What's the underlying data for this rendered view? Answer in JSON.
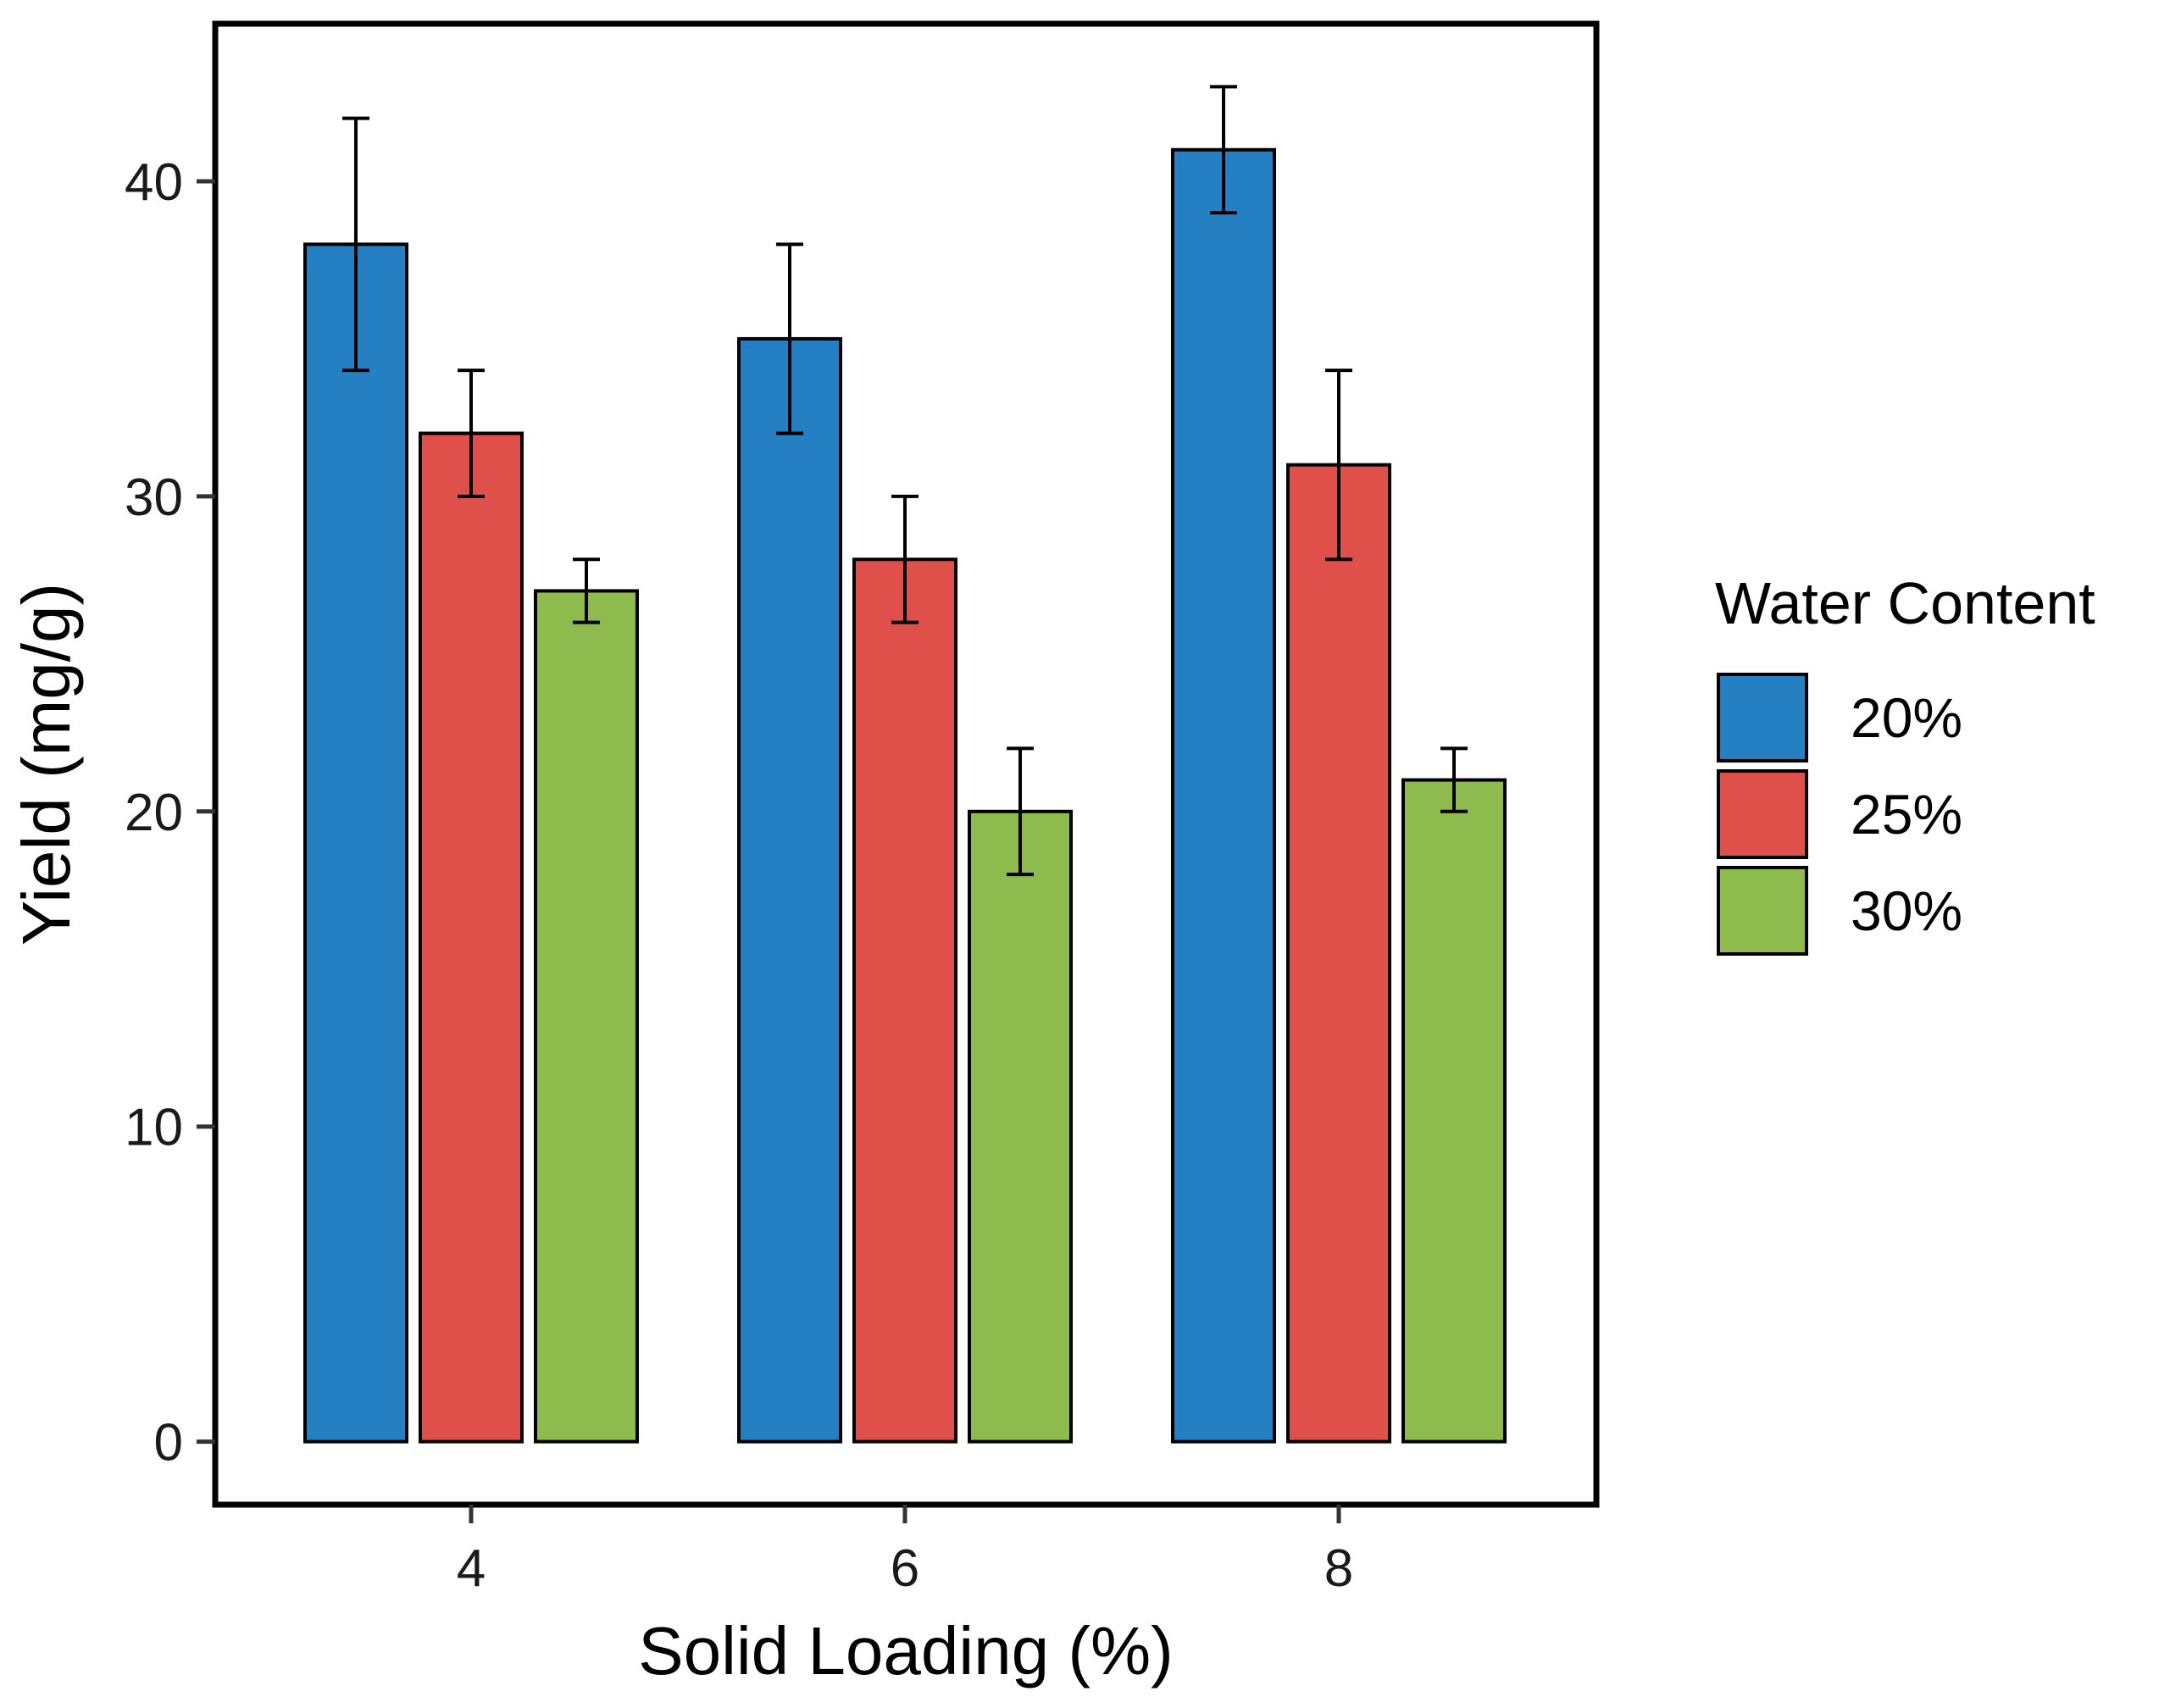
{
  "chart_data": {
    "type": "bar",
    "xlabel": "Solid Loading (%)",
    "ylabel": "Yield (mg/g)",
    "categories": [
      "4",
      "6",
      "8"
    ],
    "ylim": [
      -2,
      45
    ],
    "yticks": [
      0,
      10,
      20,
      30,
      40
    ],
    "grid": false,
    "legend": {
      "title": "Water Content",
      "position": "right"
    },
    "series": [
      {
        "name": "20%",
        "color": "#2580C3",
        "values": [
          38,
          35,
          41
        ],
        "error_low": [
          34,
          32,
          39
        ],
        "error_high": [
          42,
          38,
          43
        ]
      },
      {
        "name": "25%",
        "color": "#E0504B",
        "values": [
          32,
          28,
          31
        ],
        "error_low": [
          30,
          26,
          28
        ],
        "error_high": [
          34,
          30,
          34
        ]
      },
      {
        "name": "30%",
        "color": "#8EBB4E",
        "values": [
          27,
          20,
          21
        ],
        "error_low": [
          26,
          18,
          20
        ],
        "error_high": [
          28,
          22,
          22
        ]
      }
    ]
  }
}
